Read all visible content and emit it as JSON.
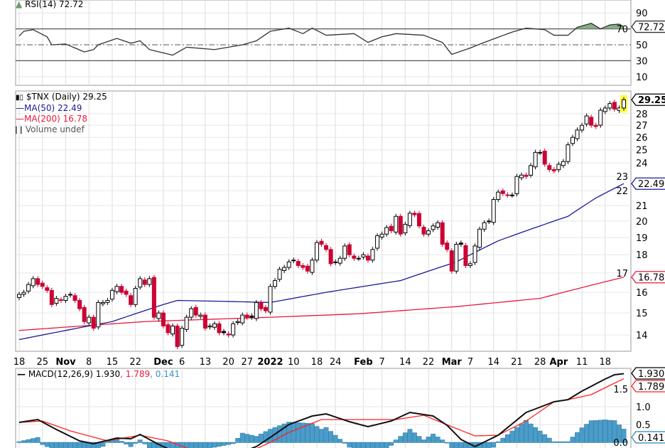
{
  "legends": {
    "rsi": "RSI(14) 72.72",
    "price": "$TNX (Daily) 29.25",
    "ma50": "MA(50) 22.49",
    "ma200": "MA(200) 16.78",
    "volume": "Volume undef",
    "macd_name": "MACD(12,26,9) 1.930",
    "macd_signal": ", 1.789",
    "macd_hist": ", 0.141"
  },
  "colors": {
    "up": "#000000",
    "down": "#cc0033",
    "ma50": "#1a1a99",
    "ma200": "#e8193c",
    "rsi_fill": "#6b9a6b",
    "hist": "#4a9cc9",
    "highlight": "#ffff44"
  },
  "chart_data": [
    {
      "type": "line",
      "title": "RSI(14)",
      "ylim": [
        0,
        100
      ],
      "yticks": [
        "90",
        "70",
        "50",
        "30",
        "10"
      ],
      "ytick_values": [
        90,
        70,
        50,
        30,
        10
      ],
      "last_value": "72.72",
      "points": [
        [
          0,
          61
        ],
        [
          1,
          67
        ],
        [
          3,
          69
        ],
        [
          6,
          60
        ],
        [
          7,
          50
        ],
        [
          10,
          51
        ],
        [
          14,
          41
        ],
        [
          16,
          44
        ],
        [
          17,
          50
        ],
        [
          21,
          58
        ],
        [
          24,
          52
        ],
        [
          26,
          55
        ],
        [
          28,
          44
        ],
        [
          33,
          37
        ],
        [
          36,
          47
        ],
        [
          42,
          44
        ],
        [
          48,
          50
        ],
        [
          51,
          55
        ],
        [
          54,
          67
        ],
        [
          58,
          71
        ],
        [
          61,
          64
        ],
        [
          63,
          71
        ],
        [
          66,
          62
        ],
        [
          72,
          64
        ],
        [
          75,
          53
        ],
        [
          78,
          60
        ],
        [
          81,
          64
        ],
        [
          87,
          62
        ],
        [
          91,
          53
        ],
        [
          93,
          38
        ],
        [
          97,
          46
        ],
        [
          100,
          53
        ],
        [
          106,
          66
        ],
        [
          109,
          71
        ],
        [
          113,
          69
        ],
        [
          115,
          62
        ],
        [
          118,
          62
        ],
        [
          120,
          72
        ],
        [
          123,
          77
        ],
        [
          125,
          70
        ],
        [
          127,
          75
        ],
        [
          129,
          76
        ],
        [
          130,
          72.72
        ]
      ]
    },
    {
      "type": "candlestick",
      "title": "$TNX (Daily)",
      "ylim": [
        13.2,
        30
      ],
      "scale": "log",
      "yticks": [
        "28",
        "27",
        "26",
        "25",
        "24",
        "23",
        "22",
        "21",
        "20",
        "19",
        "18",
        "17",
        "16",
        "15",
        "14"
      ],
      "ytick_values": [
        28,
        27,
        26,
        25,
        24,
        23,
        22,
        21,
        20,
        19,
        18,
        17,
        16,
        15,
        14
      ],
      "closes": [
        15.9,
        16.0,
        16.4,
        16.7,
        16.4,
        16.3,
        16.1,
        15.4,
        15.7,
        15.6,
        15.8,
        15.9,
        15.6,
        15.2,
        14.6,
        14.8,
        14.3,
        15.5,
        15.5,
        15.6,
        16.1,
        16.3,
        16.0,
        15.9,
        15.4,
        16.2,
        16.7,
        16.4,
        16.7,
        14.8,
        15.0,
        14.4,
        14.1,
        14.4,
        13.5,
        14.3,
        14.8,
        15.2,
        14.9,
        14.9,
        14.3,
        14.4,
        14.5,
        14.1,
        14.1,
        14.0,
        14.5,
        14.6,
        14.9,
        14.8,
        14.8,
        15.5,
        15.2,
        15.1,
        16.3,
        16.6,
        17.2,
        17.3,
        17.6,
        17.7,
        17.4,
        17.3,
        17.1,
        17.7,
        18.7,
        18.6,
        18.3,
        17.5,
        17.6,
        17.8,
        18.5,
        18.0,
        17.8,
        17.8,
        18.0,
        17.7,
        18.3,
        19.1,
        19.2,
        19.6,
        19.4,
        20.3,
        19.2,
        19.8,
        20.5,
        20.4,
        19.7,
        19.2,
        19.4,
        19.7,
        19.9,
        18.6,
        18.3,
        17.1,
        18.6,
        18.6,
        17.4,
        17.5,
        18.5,
        19.5,
        19.9,
        20.0,
        21.4,
        21.9,
        21.8,
        21.7,
        21.7,
        23.0,
        23.1,
        23.0,
        23.8,
        24.8,
        24.8,
        23.9,
        23.5,
        23.4,
        23.9,
        24.1,
        25.4,
        26.0,
        26.6,
        27.0,
        27.8,
        27.0,
        26.9,
        28.3,
        28.5,
        28.9,
        28.4,
        28.5,
        29.25
      ],
      "ma50": [
        [
          0,
          13.8
        ],
        [
          20,
          14.6
        ],
        [
          31,
          15.4
        ],
        [
          34,
          15.6
        ],
        [
          45,
          15.55
        ],
        [
          54,
          15.5
        ],
        [
          66,
          16.0
        ],
        [
          82,
          16.6
        ],
        [
          94,
          17.6
        ],
        [
          103,
          18.8
        ],
        [
          112,
          19.7
        ],
        [
          118,
          20.3
        ],
        [
          124,
          21.5
        ],
        [
          130,
          22.49
        ]
      ],
      "ma200": [
        [
          0,
          14.2
        ],
        [
          27,
          14.6
        ],
        [
          54,
          14.8
        ],
        [
          73,
          14.96
        ],
        [
          94,
          15.3
        ],
        [
          112,
          15.7
        ],
        [
          130,
          16.78
        ]
      ],
      "last_values": {
        "close": "29.25",
        "ma50": "22.49",
        "ma200": "16.78"
      }
    },
    {
      "type": "line",
      "title": "MACD(12,26,9)",
      "ylim": [
        -0.05,
        2.1
      ],
      "yticks": [
        "1.5",
        "1.0",
        "0.5",
        "0.0"
      ],
      "ytick_values": [
        1.5,
        1.0,
        0.5,
        0.0
      ],
      "last_values": {
        "macd": "1.930",
        "signal": "1.789",
        "hist": "0.141"
      },
      "macd": [
        [
          0,
          0.56
        ],
        [
          4,
          0.64
        ],
        [
          8,
          0.36
        ],
        [
          13,
          0.04
        ],
        [
          16,
          -0.04
        ],
        [
          21,
          0.12
        ],
        [
          24,
          0.1
        ],
        [
          26,
          0.22
        ],
        [
          30,
          -0.06
        ],
        [
          35,
          -0.36
        ],
        [
          46,
          -0.36
        ],
        [
          51,
          -0.12
        ],
        [
          54,
          0.14
        ],
        [
          58,
          0.5
        ],
        [
          63,
          0.74
        ],
        [
          66,
          0.8
        ],
        [
          71,
          0.58
        ],
        [
          75,
          0.44
        ],
        [
          80,
          0.6
        ],
        [
          84,
          0.84
        ],
        [
          89,
          0.74
        ],
        [
          92,
          0.48
        ],
        [
          95,
          0.08
        ],
        [
          98,
          -0.12
        ],
        [
          103,
          0.2
        ],
        [
          109,
          0.84
        ],
        [
          115,
          1.14
        ],
        [
          118,
          1.2
        ],
        [
          121,
          1.44
        ],
        [
          126,
          1.78
        ],
        [
          128,
          1.9
        ],
        [
          130,
          1.93
        ]
      ],
      "signal": [
        [
          0,
          0.56
        ],
        [
          5,
          0.6
        ],
        [
          11,
          0.32
        ],
        [
          19,
          0.04
        ],
        [
          26,
          0.2
        ],
        [
          32,
          0.04
        ],
        [
          38,
          -0.26
        ],
        [
          48,
          -0.36
        ],
        [
          54,
          0.0
        ],
        [
          58,
          0.28
        ],
        [
          65,
          0.64
        ],
        [
          72,
          0.64
        ],
        [
          81,
          0.64
        ],
        [
          87,
          0.76
        ],
        [
          93,
          0.44
        ],
        [
          98,
          0.18
        ],
        [
          103,
          0.2
        ],
        [
          109,
          0.6
        ],
        [
          115,
          1.14
        ],
        [
          118,
          1.2
        ],
        [
          123,
          1.34
        ],
        [
          127,
          1.6
        ],
        [
          130,
          1.789
        ]
      ]
    },
    {
      "type": "axis",
      "xtick_labels": [
        {
          "label": "18",
          "index": 0
        },
        {
          "label": "25",
          "index": 5
        },
        {
          "label": "Nov",
          "index": 10,
          "bold": true
        },
        {
          "label": "8",
          "index": 15
        },
        {
          "label": "15",
          "index": 20
        },
        {
          "label": "22",
          "index": 25
        },
        {
          "label": "Dec",
          "index": 31,
          "bold": true
        },
        {
          "label": "6",
          "index": 35
        },
        {
          "label": "13",
          "index": 40
        },
        {
          "label": "20",
          "index": 45
        },
        {
          "label": "27",
          "index": 49
        },
        {
          "label": "2022",
          "index": 54,
          "bold": true
        },
        {
          "label": "10",
          "index": 59
        },
        {
          "label": "18",
          "index": 64
        },
        {
          "label": "24",
          "index": 68
        },
        {
          "label": "Feb",
          "index": 74,
          "bold": true
        },
        {
          "label": "7",
          "index": 78
        },
        {
          "label": "14",
          "index": 83
        },
        {
          "label": "22",
          "index": 88
        },
        {
          "label": "Mar",
          "index": 93,
          "bold": true
        },
        {
          "label": "7",
          "index": 97
        },
        {
          "label": "14",
          "index": 102
        },
        {
          "label": "21",
          "index": 107
        },
        {
          "label": "28",
          "index": 112
        },
        {
          "label": "Apr",
          "index": 116,
          "bold": true
        },
        {
          "label": "11",
          "index": 121
        },
        {
          "label": "18",
          "index": 126
        }
      ]
    }
  ]
}
